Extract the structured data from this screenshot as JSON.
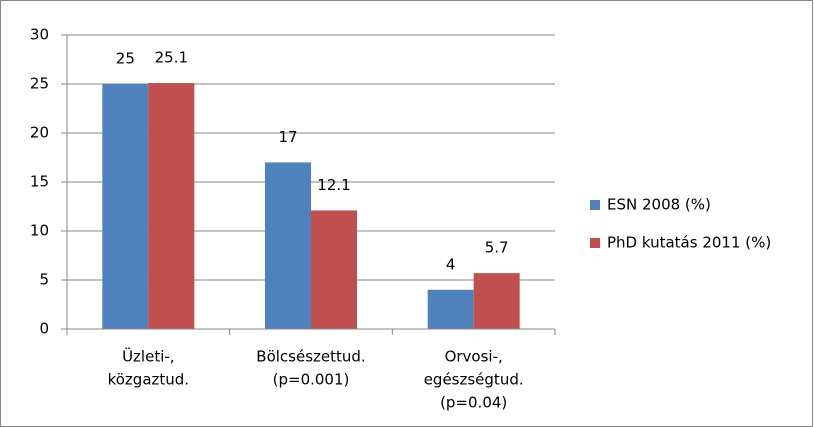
{
  "chart_data": {
    "type": "bar",
    "categories": [
      [
        "Üzleti-,",
        "közgaztud."
      ],
      [
        "Bölcsészettud.",
        "(p=0.001)"
      ],
      [
        "Orvosi-,",
        "egészségtud.",
        "(p=0.04)"
      ]
    ],
    "series": [
      {
        "name": "ESN 2008 (%)",
        "color": "#4f81bd",
        "values": [
          25,
          17,
          4
        ]
      },
      {
        "name": "PhD kutatás 2011 (%)",
        "color": "#c0504d",
        "values": [
          25.1,
          12.1,
          5.7
        ]
      }
    ],
    "ylim": [
      0,
      30
    ],
    "yticks": [
      0,
      5,
      10,
      15,
      20,
      25,
      30
    ],
    "grid": true,
    "legend": "right"
  }
}
